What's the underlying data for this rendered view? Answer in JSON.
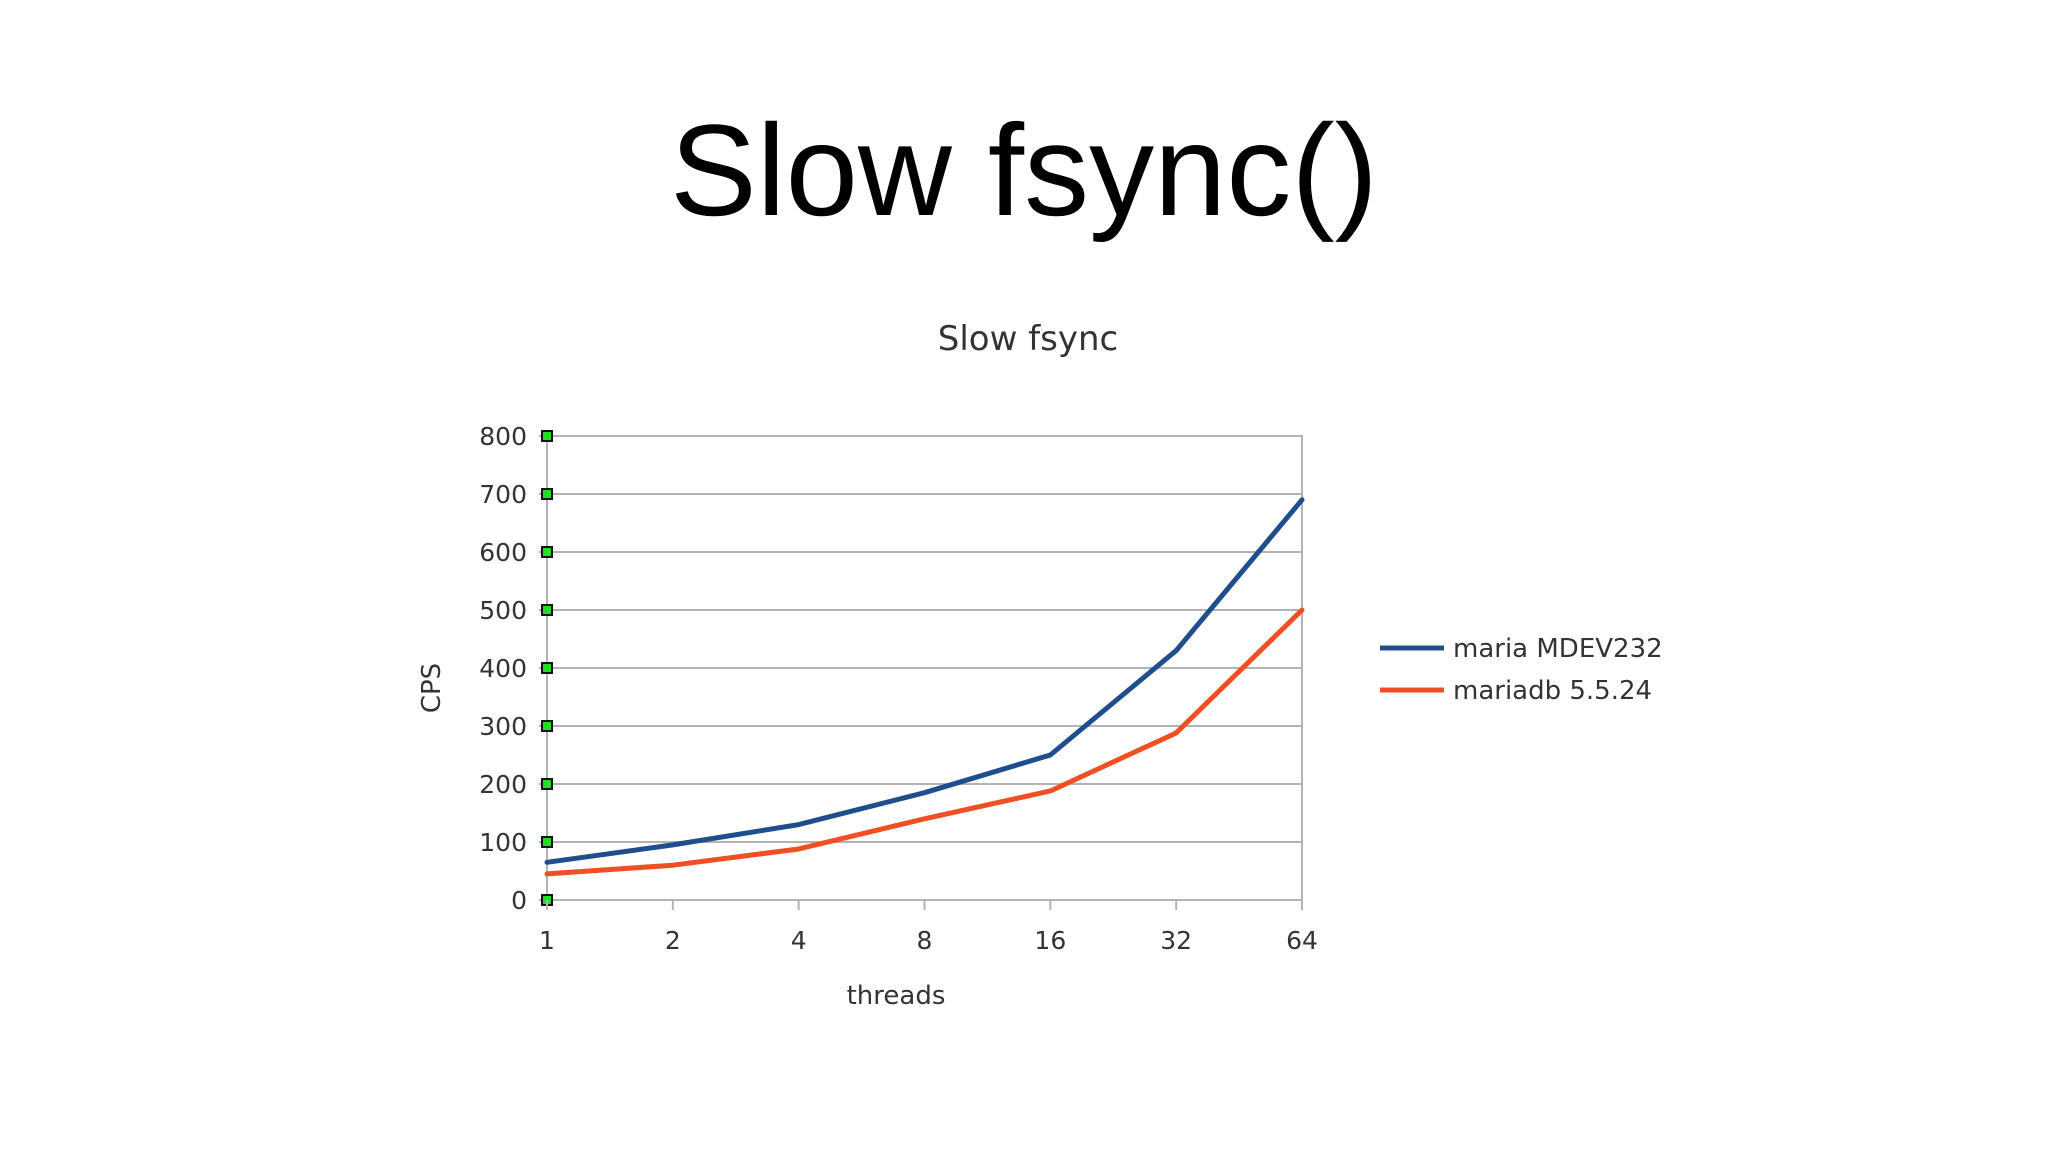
{
  "slide": {
    "title": "Slow fsync()"
  },
  "chart_data": {
    "type": "line",
    "title": "Slow fsync",
    "xlabel": "threads",
    "ylabel": "CPS",
    "categories": [
      "1",
      "2",
      "4",
      "8",
      "16",
      "32",
      "64"
    ],
    "ylim": [
      0,
      800
    ],
    "yticks": [
      "0",
      "100",
      "200",
      "300",
      "400",
      "500",
      "600",
      "700",
      "800"
    ],
    "grid": true,
    "legend_position": "right",
    "series": [
      {
        "name": "maria MDEV232",
        "color": "#1f4e8c",
        "values": [
          65,
          95,
          130,
          185,
          250,
          430,
          690
        ]
      },
      {
        "name": "mariadb 5.5.24",
        "color": "#f04e23",
        "values": [
          45,
          60,
          88,
          140,
          188,
          288,
          500
        ]
      }
    ]
  }
}
